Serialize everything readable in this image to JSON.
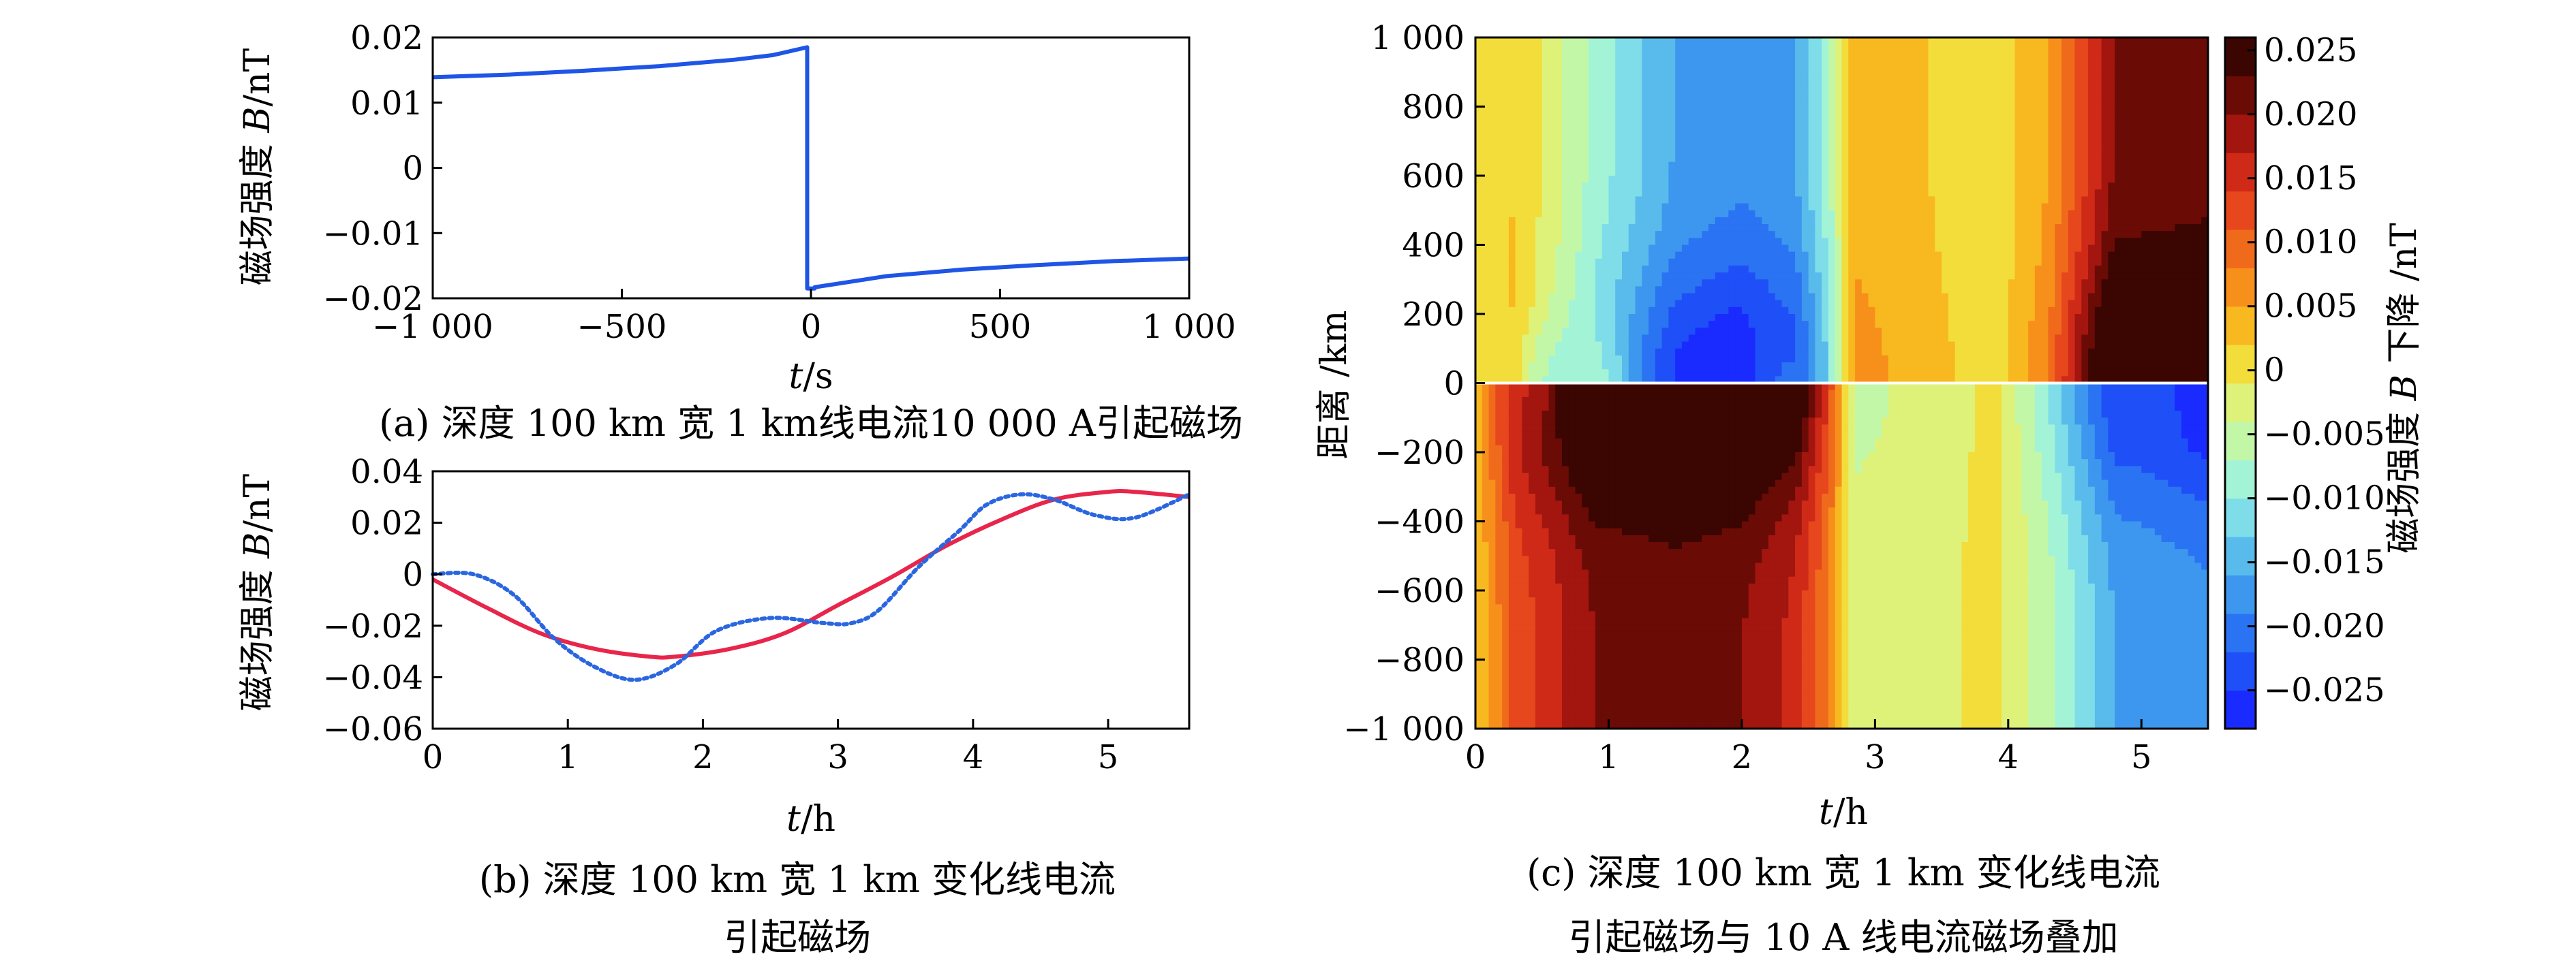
{
  "chart_data": [
    {
      "id": "a",
      "type": "line",
      "caption": "(a) 深度 100 km 宽 1 km线电流10 000  A引起磁场",
      "xlabel": "t/s",
      "xlabel_var": "t",
      "xlabel_unit": "/s",
      "ylabel": "磁场强度 B/nT",
      "ylabel_pre": "磁场强度 ",
      "ylabel_var": "B",
      "ylabel_unit": "/nT",
      "xlim": [
        -1000,
        1000
      ],
      "ylim": [
        -0.02,
        0.02
      ],
      "xticks": [
        -1000,
        -500,
        0,
        500,
        1000
      ],
      "xtick_labels": [
        "−1 000",
        "−500",
        "0",
        "500",
        "1 000"
      ],
      "yticks": [
        -0.02,
        -0.01,
        0,
        0.01,
        0.02
      ],
      "ytick_labels": [
        "−0.02",
        "−0.01",
        "0",
        "0.01",
        "0.02"
      ],
      "series": [
        {
          "name": "B",
          "color": "#1f55e6",
          "style": "solid",
          "x": [
            -1000,
            -800,
            -600,
            -400,
            -200,
            -100,
            -10,
            -10,
            10,
            10,
            100,
            200,
            400,
            600,
            800,
            1000
          ],
          "y": [
            0.0139,
            0.0143,
            0.0149,
            0.0156,
            0.0166,
            0.0173,
            0.0185,
            -0.0185,
            -0.0185,
            -0.0183,
            -0.0175,
            -0.0166,
            -0.0156,
            -0.0149,
            -0.0143,
            -0.0139
          ]
        }
      ]
    },
    {
      "id": "b",
      "type": "line",
      "caption_line1": "(b) 深度 100 km 宽 1 km 变化线电流",
      "caption_line2": "引起磁场",
      "xlabel": "t/h",
      "xlabel_var": "t",
      "xlabel_unit": "/h",
      "ylabel": "磁场强度 B/nT",
      "ylabel_pre": "磁场强度 ",
      "ylabel_var": "B",
      "ylabel_unit": "/nT",
      "xlim": [
        0,
        5.6
      ],
      "ylim": [
        -0.06,
        0.04
      ],
      "xticks": [
        0,
        1,
        2,
        3,
        4,
        5
      ],
      "xtick_labels": [
        "0",
        "1",
        "2",
        "3",
        "4",
        "5"
      ],
      "yticks": [
        -0.06,
        -0.04,
        -0.02,
        0,
        0.02,
        0.04
      ],
      "ytick_labels": [
        "−0.06",
        "−0.04",
        "−0.02",
        "0",
        "0.02",
        "0.04"
      ],
      "series": [
        {
          "name": "smooth",
          "color": "#e8254a",
          "style": "solid",
          "x": [
            0,
            0.4,
            0.8,
            1.2,
            1.6,
            1.8,
            2.2,
            2.6,
            3.0,
            3.4,
            3.8,
            4.2,
            4.6,
            5.0,
            5.2,
            5.6
          ],
          "y": [
            -0.002,
            -0.013,
            -0.023,
            -0.029,
            -0.032,
            -0.032,
            -0.029,
            -0.023,
            -0.012,
            -0.001,
            0.011,
            0.021,
            0.029,
            0.032,
            0.032,
            0.03
          ]
        },
        {
          "name": "dotted",
          "color": "#2a66e0",
          "style": "dotted",
          "x": [
            0,
            0.3,
            0.6,
            0.9,
            1.2,
            1.5,
            1.8,
            2.1,
            2.5,
            2.9,
            3.1,
            3.3,
            3.6,
            3.9,
            4.1,
            4.35,
            4.6,
            4.9,
            5.2,
            5.6
          ],
          "y": [
            0.0,
            0.0,
            -0.008,
            -0.025,
            -0.036,
            -0.041,
            -0.035,
            -0.022,
            -0.017,
            -0.019,
            -0.019,
            -0.014,
            0.003,
            0.017,
            0.027,
            0.031,
            0.029,
            0.023,
            0.022,
            0.031
          ]
        }
      ]
    },
    {
      "id": "c",
      "type": "heatmap",
      "caption_line1": "(c) 深度 100 km 宽 1 km 变化线电流",
      "caption_line2": "引起磁场与 10 A 线电流磁场叠加",
      "xlabel": "t/h",
      "xlabel_var": "t",
      "xlabel_unit": "/h",
      "ylabel": "距离 /km",
      "xlim": [
        0,
        5.5
      ],
      "ylim": [
        -1000,
        1000
      ],
      "xticks": [
        0,
        1,
        2,
        3,
        4,
        5
      ],
      "xtick_labels": [
        "0",
        "1",
        "2",
        "3",
        "4",
        "5"
      ],
      "yticks": [
        -1000,
        -800,
        -600,
        -400,
        -200,
        0,
        200,
        400,
        600,
        800,
        1000
      ],
      "ytick_labels": [
        "−1 000",
        "−800",
        "−600",
        "−400",
        "−200",
        "0",
        "200",
        "400",
        "600",
        "800",
        "1 000"
      ],
      "colorbar": {
        "label": "磁场强度 B 下降 /nT",
        "label_pre": "磁场强度 ",
        "label_var": "B",
        "label_post": " 下降 /nT",
        "min": -0.028,
        "max": 0.026,
        "ticks": [
          0.025,
          0.02,
          0.015,
          0.01,
          0.005,
          0,
          -0.005,
          -0.01,
          -0.015,
          -0.02,
          -0.025
        ],
        "tick_labels": [
          "0.025",
          "0.020",
          "0.015",
          "0.010",
          "0.005",
          "0",
          "−0.005",
          "−0.010",
          "−0.015",
          "−0.020",
          "−0.025"
        ],
        "levels": [
          "#1a2bff",
          "#1f4ff7",
          "#2a73f2",
          "#3d97ee",
          "#58bbeb",
          "#7fdde9",
          "#a3f4d6",
          "#c3f7a8",
          "#def27a",
          "#f2dd3a",
          "#f8b81f",
          "#f7901b",
          "#f06a1c",
          "#e6471c",
          "#cf2a18",
          "#a3150f",
          "#6a0b06",
          "#3b0502"
        ]
      },
      "v_top": [
        0.0,
        0.002,
        -0.003,
        -0.008,
        -0.016,
        -0.018,
        -0.016,
        -0.008,
        0.004,
        0.002,
        0.0,
        0.005,
        0.02,
        0.021
      ],
      "v_bottom": [
        0.002,
        0.012,
        0.016,
        0.02,
        0.021,
        0.02,
        0.016,
        0.008,
        -0.003,
        -0.002,
        0.0,
        -0.006,
        -0.016,
        -0.018
      ],
      "v_times": [
        0,
        0.3,
        0.6,
        0.9,
        1.5,
        2.0,
        2.4,
        2.65,
        2.85,
        3.4,
        3.9,
        4.3,
        4.8,
        5.5
      ],
      "blobs": [
        {
          "t": 0.5,
          "r": 0,
          "a": -0.012
        },
        {
          "t": 0.95,
          "r": 0,
          "a": 0.012
        },
        {
          "t": 2.15,
          "r": 0,
          "a": -0.02
        },
        {
          "t": 2.2,
          "r": 0,
          "a": 0.03
        },
        {
          "t": 5.1,
          "r": 0,
          "a": 0.03
        },
        {
          "t": 5.1,
          "r": 0,
          "a": -0.02
        }
      ]
    }
  ]
}
